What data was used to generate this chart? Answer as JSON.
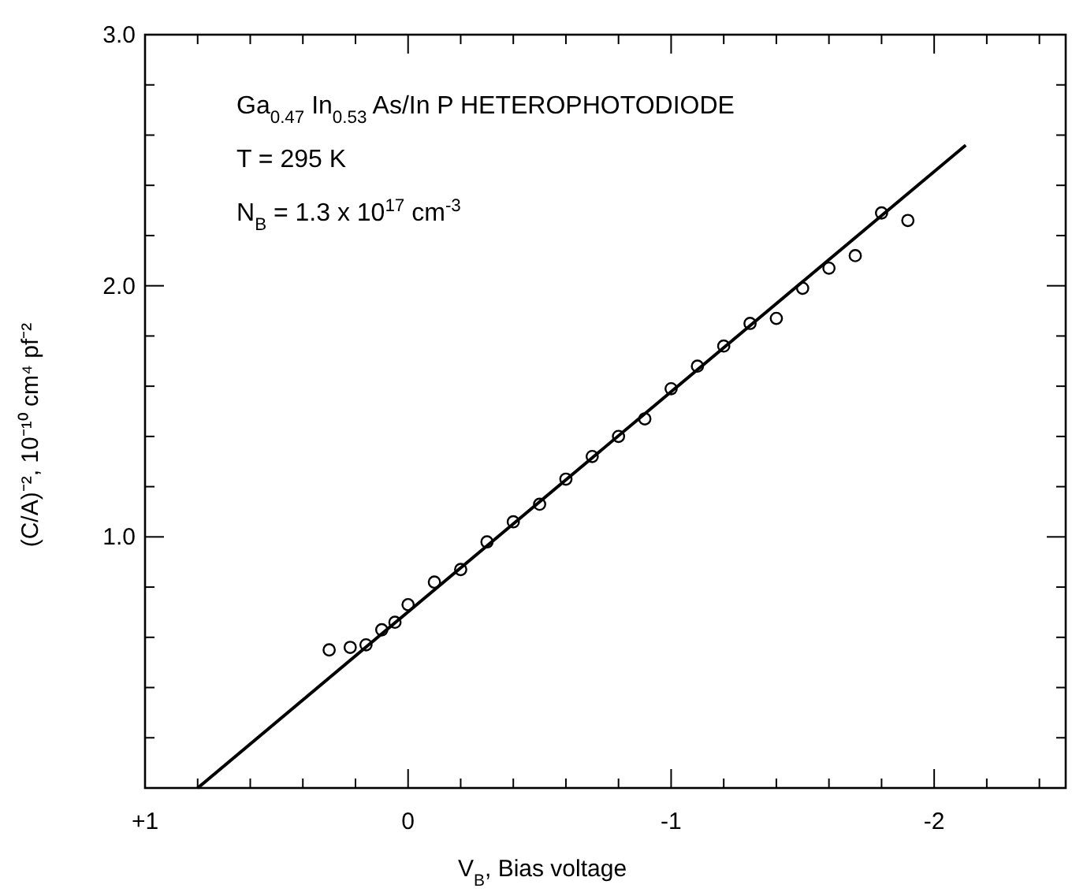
{
  "chart_data": {
    "type": "scatter",
    "xlabel": "V$_{B}$, Bias voltage",
    "ylabel": "(C/A)⁻², 10⁻¹⁰ cm⁴ pf⁻²",
    "annotations": [
      "Ga$_{0.47}$ In$_{0.53}$ As/In P  HETEROPHOTODIODE",
      "T = 295 K",
      "N$_{B}$ = 1.3 x 10$^{17}$ cm$^{-3}$"
    ],
    "xlim": [
      1,
      -2.5
    ],
    "ylim": [
      0,
      3
    ],
    "xticks": [
      {
        "value": 1,
        "label": "+1"
      },
      {
        "value": 0.8,
        "label": null
      },
      {
        "value": 0.6,
        "label": null
      },
      {
        "value": 0.4,
        "label": null
      },
      {
        "value": 0.2,
        "label": null
      },
      0,
      {
        "value": -0.2,
        "label": null
      },
      {
        "value": -0.4,
        "label": null
      },
      {
        "value": -0.6,
        "label": null
      },
      {
        "value": -0.8,
        "label": null
      },
      -1,
      {
        "value": -1.2,
        "label": null
      },
      {
        "value": -1.4,
        "label": null
      },
      {
        "value": -1.6,
        "label": null
      },
      {
        "value": -1.8,
        "label": null
      },
      -2,
      {
        "value": -2.2,
        "label": null
      },
      {
        "value": -2.4,
        "label": null
      }
    ],
    "yticks": [
      {
        "value": 0,
        "label": null
      },
      {
        "value": 0.2,
        "label": null
      },
      {
        "value": 0.4,
        "label": null
      },
      {
        "value": 0.6,
        "label": null
      },
      {
        "value": 0.8,
        "label": null
      },
      {
        "value": 1,
        "label": "1.0"
      },
      {
        "value": 1.2,
        "label": null
      },
      {
        "value": 1.4,
        "label": null
      },
      {
        "value": 1.6,
        "label": null
      },
      {
        "value": 1.8,
        "label": null
      },
      {
        "value": 2,
        "label": "2.0"
      },
      {
        "value": 2.2,
        "label": null
      },
      {
        "value": 2.4,
        "label": null
      },
      {
        "value": 2.6,
        "label": null
      },
      {
        "value": 2.8,
        "label": null
      },
      {
        "value": 3,
        "label": "3.0"
      }
    ],
    "grid": false,
    "marker": "circle",
    "series": [
      {
        "color": "#000000",
        "x": [
          0.3,
          0.22,
          0.16,
          0.1,
          0.05,
          0,
          -0.1,
          -0.2,
          -0.3,
          -0.4,
          -0.5,
          -0.6,
          -0.7,
          -0.8,
          -0.9,
          -1.0,
          -1.1,
          -1.2,
          -1.3,
          -1.4,
          -1.5,
          -1.6,
          -1.7,
          -1.8,
          -1.9
        ],
        "values": [
          0.55,
          0.56,
          0.57,
          0.63,
          0.66,
          0.73,
          0.82,
          0.87,
          0.98,
          1.06,
          1.13,
          1.23,
          1.32,
          1.4,
          1.47,
          1.59,
          1.68,
          1.76,
          1.85,
          1.87,
          1.99,
          2.07,
          2.12,
          2.29,
          2.26
        ]
      },
      {
        "type": "line",
        "color": "#000000",
        "marker": "none",
        "line_style": "solid",
        "x": [
          0.8,
          -2.12
        ],
        "values": [
          0,
          2.56
        ]
      }
    ]
  }
}
